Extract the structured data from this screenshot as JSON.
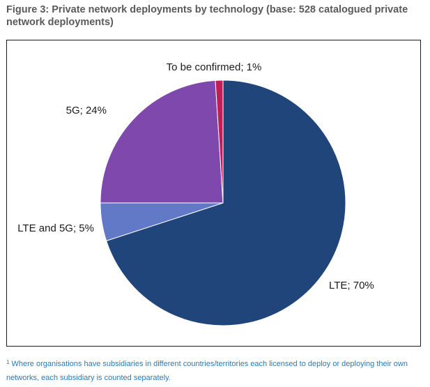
{
  "figure": {
    "title": "Figure 3: Private network deployments by technology (base: 528 catalogued private network deployments)"
  },
  "chart_data": {
    "type": "pie",
    "categories": [
      "LTE",
      "LTE and 5G",
      "5G",
      "To be confirmed"
    ],
    "values": [
      70,
      5,
      24,
      1
    ],
    "labels": [
      "LTE; 70%",
      "LTE and 5G; 5%",
      "5G; 24%",
      "To be confirmed; 1%"
    ],
    "colors": [
      "#1f457b",
      "#6179c6",
      "#7f48ad",
      "#c21e56"
    ],
    "legend": "none (data labels beside slices)"
  },
  "footnote": {
    "marker": "1",
    "text": "Where organisations have subsidiaries in different countries/territories each licensed to deploy or deploying their own networks, each subsidiary is counted separately."
  }
}
